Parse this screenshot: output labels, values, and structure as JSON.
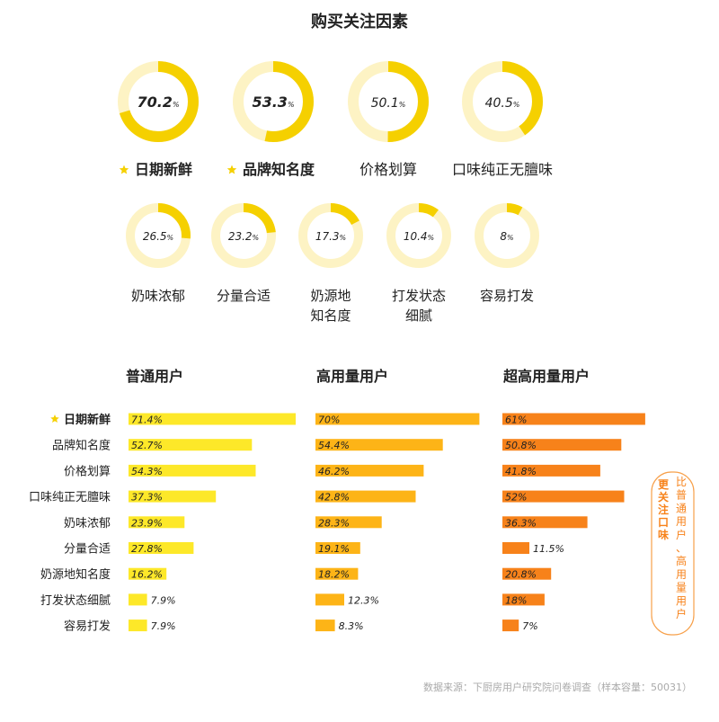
{
  "title": "购买关注因素",
  "source": "数据来源：下厨房用户研究院问卷调查（样本容量：50031）",
  "colors": {
    "donut_track": "#fdf3c4",
    "donut_fill": "#f5d000",
    "star": "#f5d000",
    "group_normal": "#fde829",
    "group_high": "#fdb417",
    "group_super": "#f7821a",
    "callout_border": "#f7a04a",
    "callout_text": "#f7821a"
  },
  "callout": {
    "emphasis": "更关注口味",
    "note": "比普通用户、高用量用户"
  },
  "chart_data": [
    {
      "type": "pie",
      "variant": "donut",
      "title": "购买关注因素",
      "unit": "%",
      "slices": [
        {
          "label": "日期新鲜",
          "value": 70.2,
          "starred": true
        },
        {
          "label": "品牌知名度",
          "value": 53.3,
          "starred": true
        },
        {
          "label": "价格划算",
          "value": 50.1
        },
        {
          "label": "口味纯正无膻味",
          "value": 40.5
        },
        {
          "label": "奶味浓郁",
          "value": 26.5
        },
        {
          "label": "分量合适",
          "value": 23.2
        },
        {
          "label": "奶源地知名度",
          "value": 17.3,
          "label_lines": [
            "奶源地",
            "知名度"
          ]
        },
        {
          "label": "打发状态细腻",
          "value": 10.4,
          "label_lines": [
            "打发状态",
            "细腻"
          ]
        },
        {
          "label": "容易打发",
          "value": 8
        }
      ]
    },
    {
      "type": "bar",
      "orientation": "horizontal",
      "unit": "%",
      "categories": [
        "日期新鲜",
        "品牌知名度",
        "价格划算",
        "口味纯正无膻味",
        "奶味浓郁",
        "分量合适",
        "奶源地知名度",
        "打发状态细腻",
        "容易打发"
      ],
      "starred_category": "日期新鲜",
      "highlight_category": "口味纯正无膻味",
      "series": [
        {
          "name": "普通用户",
          "values": [
            71.4,
            52.7,
            54.3,
            37.3,
            23.9,
            27.8,
            16.2,
            7.9,
            7.9
          ]
        },
        {
          "name": "高用量用户",
          "values": [
            70,
            54.4,
            46.2,
            42.8,
            28.3,
            19.1,
            18.2,
            12.3,
            8.3
          ]
        },
        {
          "name": "超高用量用户",
          "values": [
            61,
            50.8,
            41.8,
            52,
            36.3,
            11.5,
            20.8,
            18,
            7
          ]
        }
      ]
    }
  ]
}
